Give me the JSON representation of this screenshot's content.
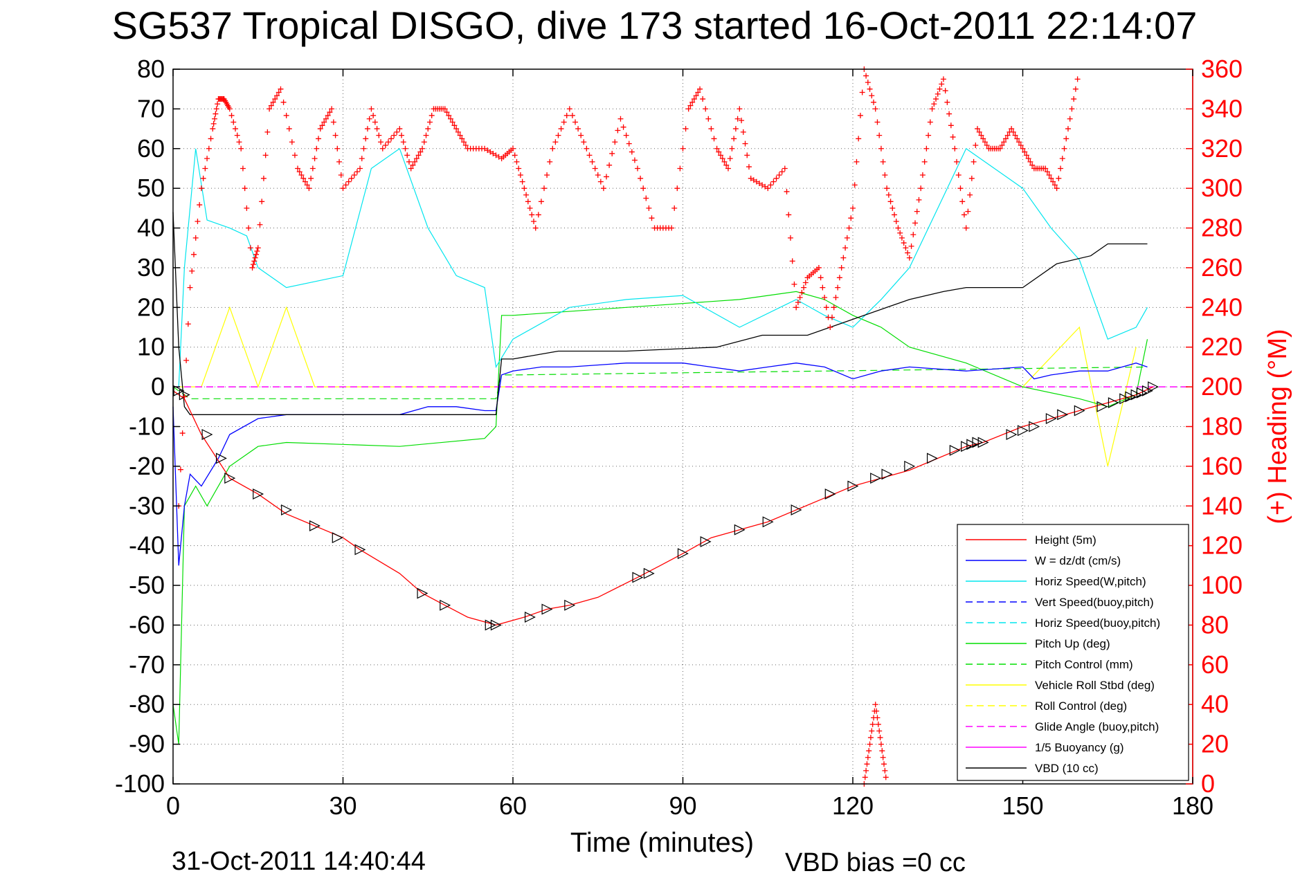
{
  "figure": {
    "title": "SG537 Tropical DISGO, dive 173 started 16-Oct-2011 22:14:07",
    "footer_date": "31-Oct-2011 14:40:44",
    "footer_bias": "VBD bias =0 cc"
  },
  "chart_data": {
    "type": "line",
    "xlabel": "Time (minutes)",
    "ylabel": "",
    "y2label": "(+) Heading (°M)",
    "xlim": [
      0,
      180
    ],
    "ylim": [
      -100,
      80
    ],
    "y2lim": [
      0,
      360
    ],
    "xticks": [
      0,
      30,
      60,
      90,
      120,
      150,
      180
    ],
    "yticks": [
      -100,
      -90,
      -80,
      -70,
      -60,
      -50,
      -40,
      -30,
      -20,
      -10,
      0,
      10,
      20,
      30,
      40,
      50,
      60,
      70,
      80
    ],
    "y2ticks": [
      0,
      20,
      40,
      60,
      80,
      100,
      120,
      140,
      160,
      180,
      200,
      220,
      240,
      260,
      280,
      300,
      320,
      340,
      360
    ],
    "grid": true,
    "legend_position": "lower-right",
    "colors": {
      "heading": "#ff0000",
      "height": "#ff0000",
      "w": "#0000ff",
      "horiz": "#00e5ee",
      "pitch": "#00dd00",
      "roll": "#ffff00",
      "glide": "#ff00ff",
      "vbd": "#000000"
    },
    "legend": [
      {
        "label": "Height (5m)",
        "color": "#ff0000",
        "dash": "solid"
      },
      {
        "label": "W = dz/dt (cm/s)",
        "color": "#0000ff",
        "dash": "solid"
      },
      {
        "label": "Horiz Speed(W,pitch)",
        "color": "#00e5ee",
        "dash": "solid"
      },
      {
        "label": "Vert Speed(buoy,pitch)",
        "color": "#0000ff",
        "dash": "dashed"
      },
      {
        "label": "Horiz Speed(buoy,pitch)",
        "color": "#00e5ee",
        "dash": "dashed"
      },
      {
        "label": "Pitch Up (deg)",
        "color": "#00dd00",
        "dash": "solid"
      },
      {
        "label": "Pitch Control (mm)",
        "color": "#00dd00",
        "dash": "dashed"
      },
      {
        "label": "Vehicle Roll Stbd (deg)",
        "color": "#ffff00",
        "dash": "solid"
      },
      {
        "label": "Roll Control (deg)",
        "color": "#ffff00",
        "dash": "dashed"
      },
      {
        "label": "Glide Angle (buoy,pitch)",
        "color": "#ff00ff",
        "dash": "dashed"
      },
      {
        "label": "1/5 Buoyancy (g)",
        "color": "#ff00ff",
        "dash": "solid"
      },
      {
        "label": "VBD (10 cc)",
        "color": "#000000",
        "dash": "solid"
      }
    ],
    "series": [
      {
        "key": "height",
        "x": [
          0,
          2,
          5,
          10,
          15,
          20,
          25,
          30,
          33,
          40,
          44,
          48,
          52,
          57,
          62,
          66,
          70,
          75,
          82,
          86,
          90,
          95,
          100,
          105,
          110,
          115,
          120,
          125,
          130,
          135,
          140,
          143,
          150,
          155,
          160,
          165,
          170,
          173
        ],
        "y": [
          -1,
          -3,
          -12,
          -23,
          -27,
          -32,
          -35,
          -38,
          -41,
          -47,
          -52,
          -55,
          -58,
          -60,
          -58,
          -56,
          -55,
          -53,
          -48,
          -45,
          -42,
          -38,
          -36,
          -34,
          -31,
          -28,
          -25,
          -23,
          -21,
          -18,
          -15,
          -14,
          -10,
          -8,
          -6,
          -4,
          -2,
          0
        ]
      },
      {
        "key": "height_markers",
        "x": [
          1,
          2,
          6,
          8.5,
          10,
          15,
          20,
          25,
          29,
          33,
          44,
          48,
          56,
          57,
          63,
          66,
          70,
          82,
          84,
          90,
          94,
          100,
          105,
          110,
          116,
          120,
          124,
          126,
          130,
          134,
          138,
          140,
          141,
          142,
          143,
          148,
          150,
          152,
          155,
          157,
          160,
          164,
          166,
          168,
          169,
          170,
          171,
          172,
          173
        ],
        "y": [
          -1,
          -2,
          -12,
          -18,
          -23,
          -27,
          -31,
          -35,
          -38,
          -41,
          -52,
          -55,
          -60,
          -60,
          -58,
          -56,
          -55,
          -48,
          -47,
          -42,
          -39,
          -36,
          -34,
          -31,
          -27,
          -25,
          -23,
          -22,
          -20,
          -18,
          -16,
          -15,
          -14.5,
          -14,
          -14,
          -12,
          -11,
          -10,
          -8,
          -7,
          -6,
          -5,
          -4,
          -3,
          -2.5,
          -2,
          -1.5,
          -1,
          0
        ]
      },
      {
        "key": "w",
        "x": [
          0,
          1,
          2,
          3,
          5,
          8,
          10,
          15,
          20,
          25,
          30,
          40,
          45,
          50,
          55,
          57,
          58,
          60,
          65,
          70,
          80,
          90,
          100,
          105,
          110,
          115,
          120,
          125,
          130,
          140,
          150,
          152,
          155,
          160,
          165,
          170,
          172
        ],
        "y": [
          -5,
          -45,
          -30,
          -22,
          -25,
          -18,
          -12,
          -8,
          -7,
          -7,
          -7,
          -7,
          -5,
          -5,
          -6,
          -6,
          3,
          4,
          5,
          5,
          6,
          6,
          4,
          5,
          6,
          5,
          2,
          4,
          5,
          4,
          5,
          2,
          3,
          4,
          4,
          6,
          5
        ]
      },
      {
        "key": "horiz",
        "x": [
          1,
          2,
          4,
          6,
          10,
          13,
          15,
          20,
          30,
          35,
          40,
          45,
          50,
          55,
          57,
          60,
          70,
          80,
          90,
          100,
          110,
          115,
          120,
          125,
          130,
          135,
          140,
          150,
          155,
          160,
          165,
          170,
          172
        ],
        "y": [
          0,
          30,
          60,
          42,
          40,
          38,
          30,
          25,
          28,
          55,
          60,
          40,
          28,
          25,
          5,
          12,
          20,
          22,
          23,
          15,
          22,
          18,
          15,
          22,
          30,
          45,
          60,
          50,
          40,
          32,
          12,
          15,
          20
        ]
      },
      {
        "key": "pitch",
        "x": [
          0,
          1,
          2,
          4,
          6,
          10,
          15,
          20,
          40,
          55,
          57,
          58,
          60,
          80,
          100,
          110,
          115,
          120,
          125,
          130,
          140,
          150,
          160,
          165,
          170,
          172
        ],
        "y": [
          -80,
          -90,
          -30,
          -25,
          -30,
          -20,
          -15,
          -14,
          -15,
          -13,
          -10,
          18,
          18,
          20,
          22,
          24,
          22,
          18,
          15,
          10,
          6,
          0,
          -3,
          -5,
          -2,
          12
        ]
      },
      {
        "key": "pitch_control",
        "x": [
          0,
          3,
          56,
          57,
          58,
          60,
          172
        ],
        "y": [
          0,
          -3,
          -3,
          -3,
          3,
          3,
          5
        ]
      },
      {
        "key": "roll",
        "x": [
          0,
          5,
          10,
          15,
          20,
          25,
          30,
          35,
          40,
          45,
          50,
          55,
          60,
          70,
          80,
          90,
          100,
          110,
          120,
          130,
          140,
          150,
          160,
          165,
          170
        ],
        "y": [
          0,
          0,
          20,
          0,
          20,
          0,
          0,
          0,
          0,
          0,
          0,
          0,
          0,
          0,
          0,
          0,
          0,
          0,
          0,
          0,
          0,
          0,
          15,
          -20,
          10
        ]
      },
      {
        "key": "glide",
        "x": [
          0,
          180
        ],
        "y": [
          0,
          0
        ]
      },
      {
        "key": "vbd",
        "x": [
          0,
          1,
          2,
          3,
          57,
          58,
          60,
          68,
          80,
          96,
          104,
          112,
          120,
          126,
          130,
          136,
          140,
          150,
          156,
          162,
          165,
          172
        ],
        "y": [
          44,
          10,
          -5,
          -7,
          -7,
          7,
          7,
          9,
          9,
          10,
          13,
          13,
          17,
          20,
          22,
          24,
          25,
          25,
          31,
          33,
          36,
          36
        ]
      },
      {
        "key": "heading",
        "x": [
          1,
          3,
          5,
          7,
          8,
          9,
          10,
          12,
          14,
          15,
          17,
          19,
          22,
          24,
          26,
          28,
          30,
          33,
          35,
          37,
          40,
          42,
          44,
          46,
          48,
          50,
          52,
          55,
          58,
          60,
          62,
          64,
          67,
          70,
          73,
          76,
          79,
          82,
          85,
          88,
          91,
          93,
          96,
          98,
          100,
          102,
          105,
          108,
          110,
          112,
          114,
          116,
          118,
          120,
          122,
          124,
          126,
          128,
          130,
          132,
          134,
          136,
          138,
          140,
          142,
          144,
          146,
          148,
          150,
          152,
          154,
          156,
          158,
          160
        ],
        "y": [
          140,
          250,
          300,
          330,
          345,
          345,
          340,
          320,
          260,
          270,
          340,
          350,
          310,
          300,
          330,
          340,
          300,
          310,
          340,
          320,
          330,
          310,
          320,
          340,
          340,
          330,
          320,
          320,
          315,
          320,
          300,
          280,
          320,
          340,
          320,
          300,
          335,
          310,
          280,
          280,
          340,
          350,
          320,
          310,
          340,
          305,
          300,
          310,
          240,
          255,
          260,
          230,
          260,
          290,
          360,
          340,
          300,
          280,
          265,
          300,
          340,
          355,
          320,
          280,
          330,
          320,
          320,
          330,
          320,
          310,
          310,
          300,
          330,
          360
        ]
      },
      {
        "key": "heading_bottom",
        "x": [
          122,
          123,
          124,
          125,
          126
        ],
        "y": [
          0,
          20,
          40,
          20,
          0
        ]
      }
    ]
  }
}
